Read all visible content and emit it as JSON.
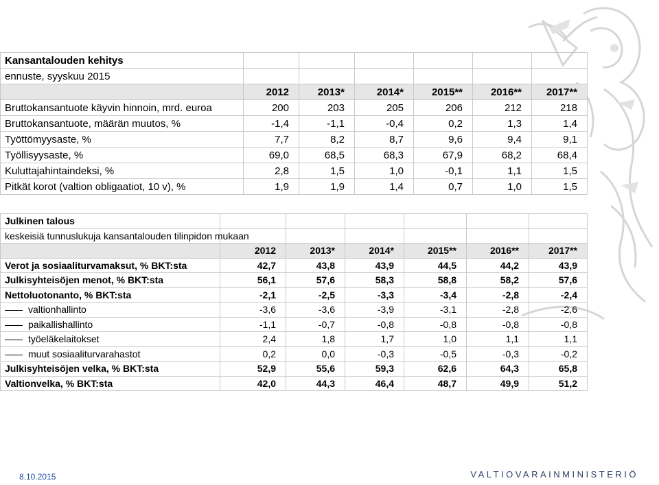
{
  "table1": {
    "title": "Kansantalouden kehitys",
    "subtitle": "ennuste, syyskuu 2015",
    "columns": [
      "2012",
      "2013*",
      "2014*",
      "2015**",
      "2016**",
      "2017**"
    ],
    "rows": [
      {
        "label": "Bruttokansantuote käyvin hinnoin, mrd. euroa",
        "values": [
          "200",
          "203",
          "205",
          "206",
          "212",
          "218"
        ]
      },
      {
        "label": "Bruttokansantuote, määrän muutos, %",
        "values": [
          "-1,4",
          "-1,1",
          "-0,4",
          "0,2",
          "1,3",
          "1,4"
        ]
      },
      {
        "label": "Työttömyysaste, %",
        "values": [
          "7,7",
          "8,2",
          "8,7",
          "9,6",
          "9,4",
          "9,1"
        ]
      },
      {
        "label": "Työllisyysaste, %",
        "values": [
          "69,0",
          "68,5",
          "68,3",
          "67,9",
          "68,2",
          "68,4"
        ]
      },
      {
        "label": "Kuluttajahintaindeksi, %",
        "values": [
          "2,8",
          "1,5",
          "1,0",
          "-0,1",
          "1,1",
          "1,5"
        ]
      },
      {
        "label": "Pitkät korot (valtion obligaatiot, 10 v), %",
        "values": [
          "1,9",
          "1,9",
          "1,4",
          "0,7",
          "1,0",
          "1,5"
        ]
      }
    ]
  },
  "table2": {
    "title": "Julkinen talous",
    "subtitle": "keskeisiä tunnuslukuja kansantalouden tilinpidon mukaan",
    "columns": [
      "2012",
      "2013*",
      "2014*",
      "2015**",
      "2016**",
      "2017**"
    ],
    "rows": [
      {
        "label": "Verot ja sosiaaliturvamaksut, % BKT:sta",
        "values": [
          "42,7",
          "43,8",
          "43,9",
          "44,5",
          "44,2",
          "43,9"
        ]
      },
      {
        "label": "Julkisyhteisöjen menot, % BKT:sta",
        "values": [
          "56,1",
          "57,6",
          "58,3",
          "58,8",
          "58,2",
          "57,6"
        ]
      },
      {
        "label": "Nettoluotonanto, % BKT:sta",
        "values": [
          "-2,1",
          "-2,5",
          "-3,3",
          "-3,4",
          "-2,8",
          "-2,4"
        ]
      },
      {
        "label": "valtionhallinto",
        "values": [
          "-3,6",
          "-3,6",
          "-3,9",
          "-3,1",
          "-2,8",
          "-2,6"
        ]
      },
      {
        "label": "paikallishallinto",
        "values": [
          "-1,1",
          "-0,7",
          "-0,8",
          "-0,8",
          "-0,8",
          "-0,8"
        ]
      },
      {
        "label": "työeläkelaitokset",
        "values": [
          "2,4",
          "1,8",
          "1,7",
          "1,0",
          "1,1",
          "1,1"
        ]
      },
      {
        "label": "muut sosiaaliturvarahastot",
        "values": [
          "0,2",
          "0,0",
          "-0,3",
          "-0,5",
          "-0,3",
          "-0,2"
        ]
      },
      {
        "label": "Julkisyhteisöjen velka, % BKT:sta",
        "values": [
          "52,9",
          "55,6",
          "59,3",
          "62,6",
          "64,3",
          "65,8"
        ]
      },
      {
        "label": "Valtionvelka, % BKT:sta",
        "values": [
          "42,0",
          "44,3",
          "46,4",
          "48,7",
          "49,9",
          "51,2"
        ]
      }
    ]
  },
  "footer": {
    "date": "8.10.2015",
    "organization": "VALTIOVARAINMINISTERIÖ"
  },
  "icons": {
    "emblem": "lion-emblem-icon"
  },
  "colors": {
    "footer_date": "#1f4e9c",
    "footer_org": "#2a3f66",
    "emblem": "#d9d9d9"
  }
}
